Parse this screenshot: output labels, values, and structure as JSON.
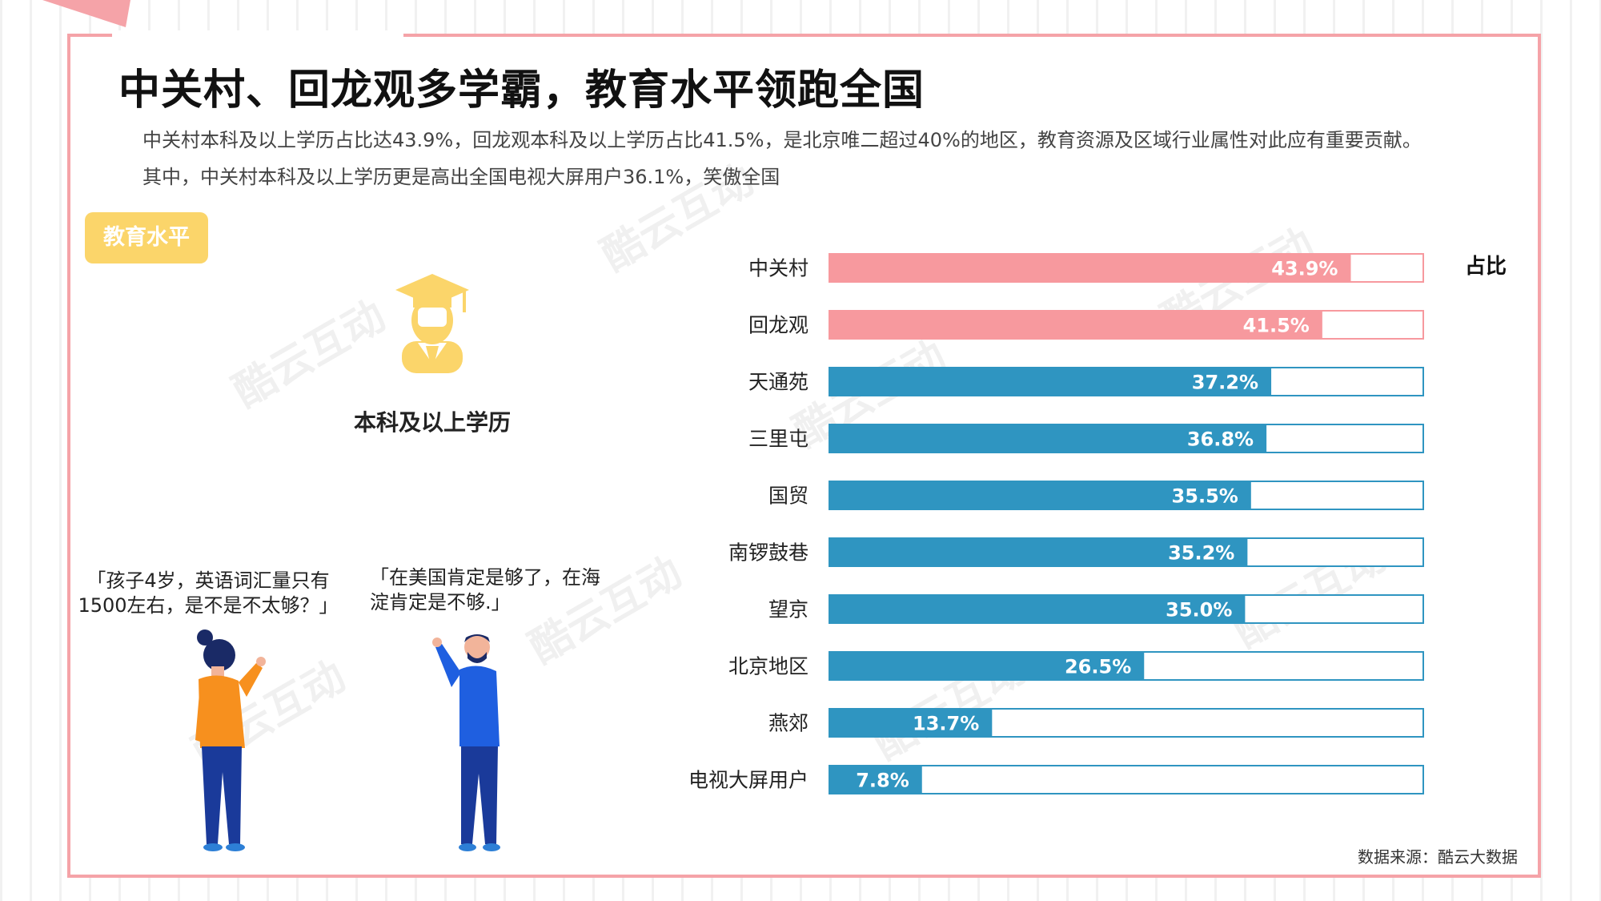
{
  "title": "中关村、回龙观多学霸，教育水平领跑全国",
  "description": [
    "中关村本科及以上学历占比达43.9%，回龙观本科及以上学历占比41.5%，是北京唯二超过40%的地区，教育资源及区域行业属性对此应有重要贡献。",
    "其中，中关村本科及以上学历更是高出全国电视大屏用户36.1%，笑傲全国"
  ],
  "badge": "教育水平",
  "edu_label": "本科及以上学历",
  "quotes": [
    "「孩子4岁，英语词汇量只有1500左右，是不是不太够？」",
    "「在美国肯定是够了，在海淀肯定是不够.」"
  ],
  "watermark": "酷云互动",
  "source": "数据来源：酷云大数据",
  "icons": [
    "graduate-icon",
    "woman-figure-icon",
    "man-figure-icon"
  ],
  "colors": {
    "highlight": "#f7999e",
    "normal": "#2f95c1",
    "badge": "#fbd56a",
    "frame": "#f5a3a8"
  },
  "chart_data": {
    "type": "bar",
    "orientation": "horizontal",
    "legend": "占比",
    "unit": "%",
    "xlim": [
      0,
      50
    ],
    "categories": [
      "中关村",
      "回龙观",
      "天通苑",
      "三里屯",
      "国贸",
      "南锣鼓巷",
      "望京",
      "北京地区",
      "燕郊",
      "电视大屏用户"
    ],
    "values": [
      43.9,
      41.5,
      37.2,
      36.8,
      35.5,
      35.2,
      35.0,
      26.5,
      13.7,
      7.8
    ],
    "labels": [
      "43.9%",
      "41.5%",
      "37.2%",
      "36.8%",
      "35.5%",
      "35.2%",
      "35.0%",
      "26.5%",
      "13.7%",
      "7.8%"
    ],
    "highlighted": [
      "中关村",
      "回龙观"
    ]
  }
}
